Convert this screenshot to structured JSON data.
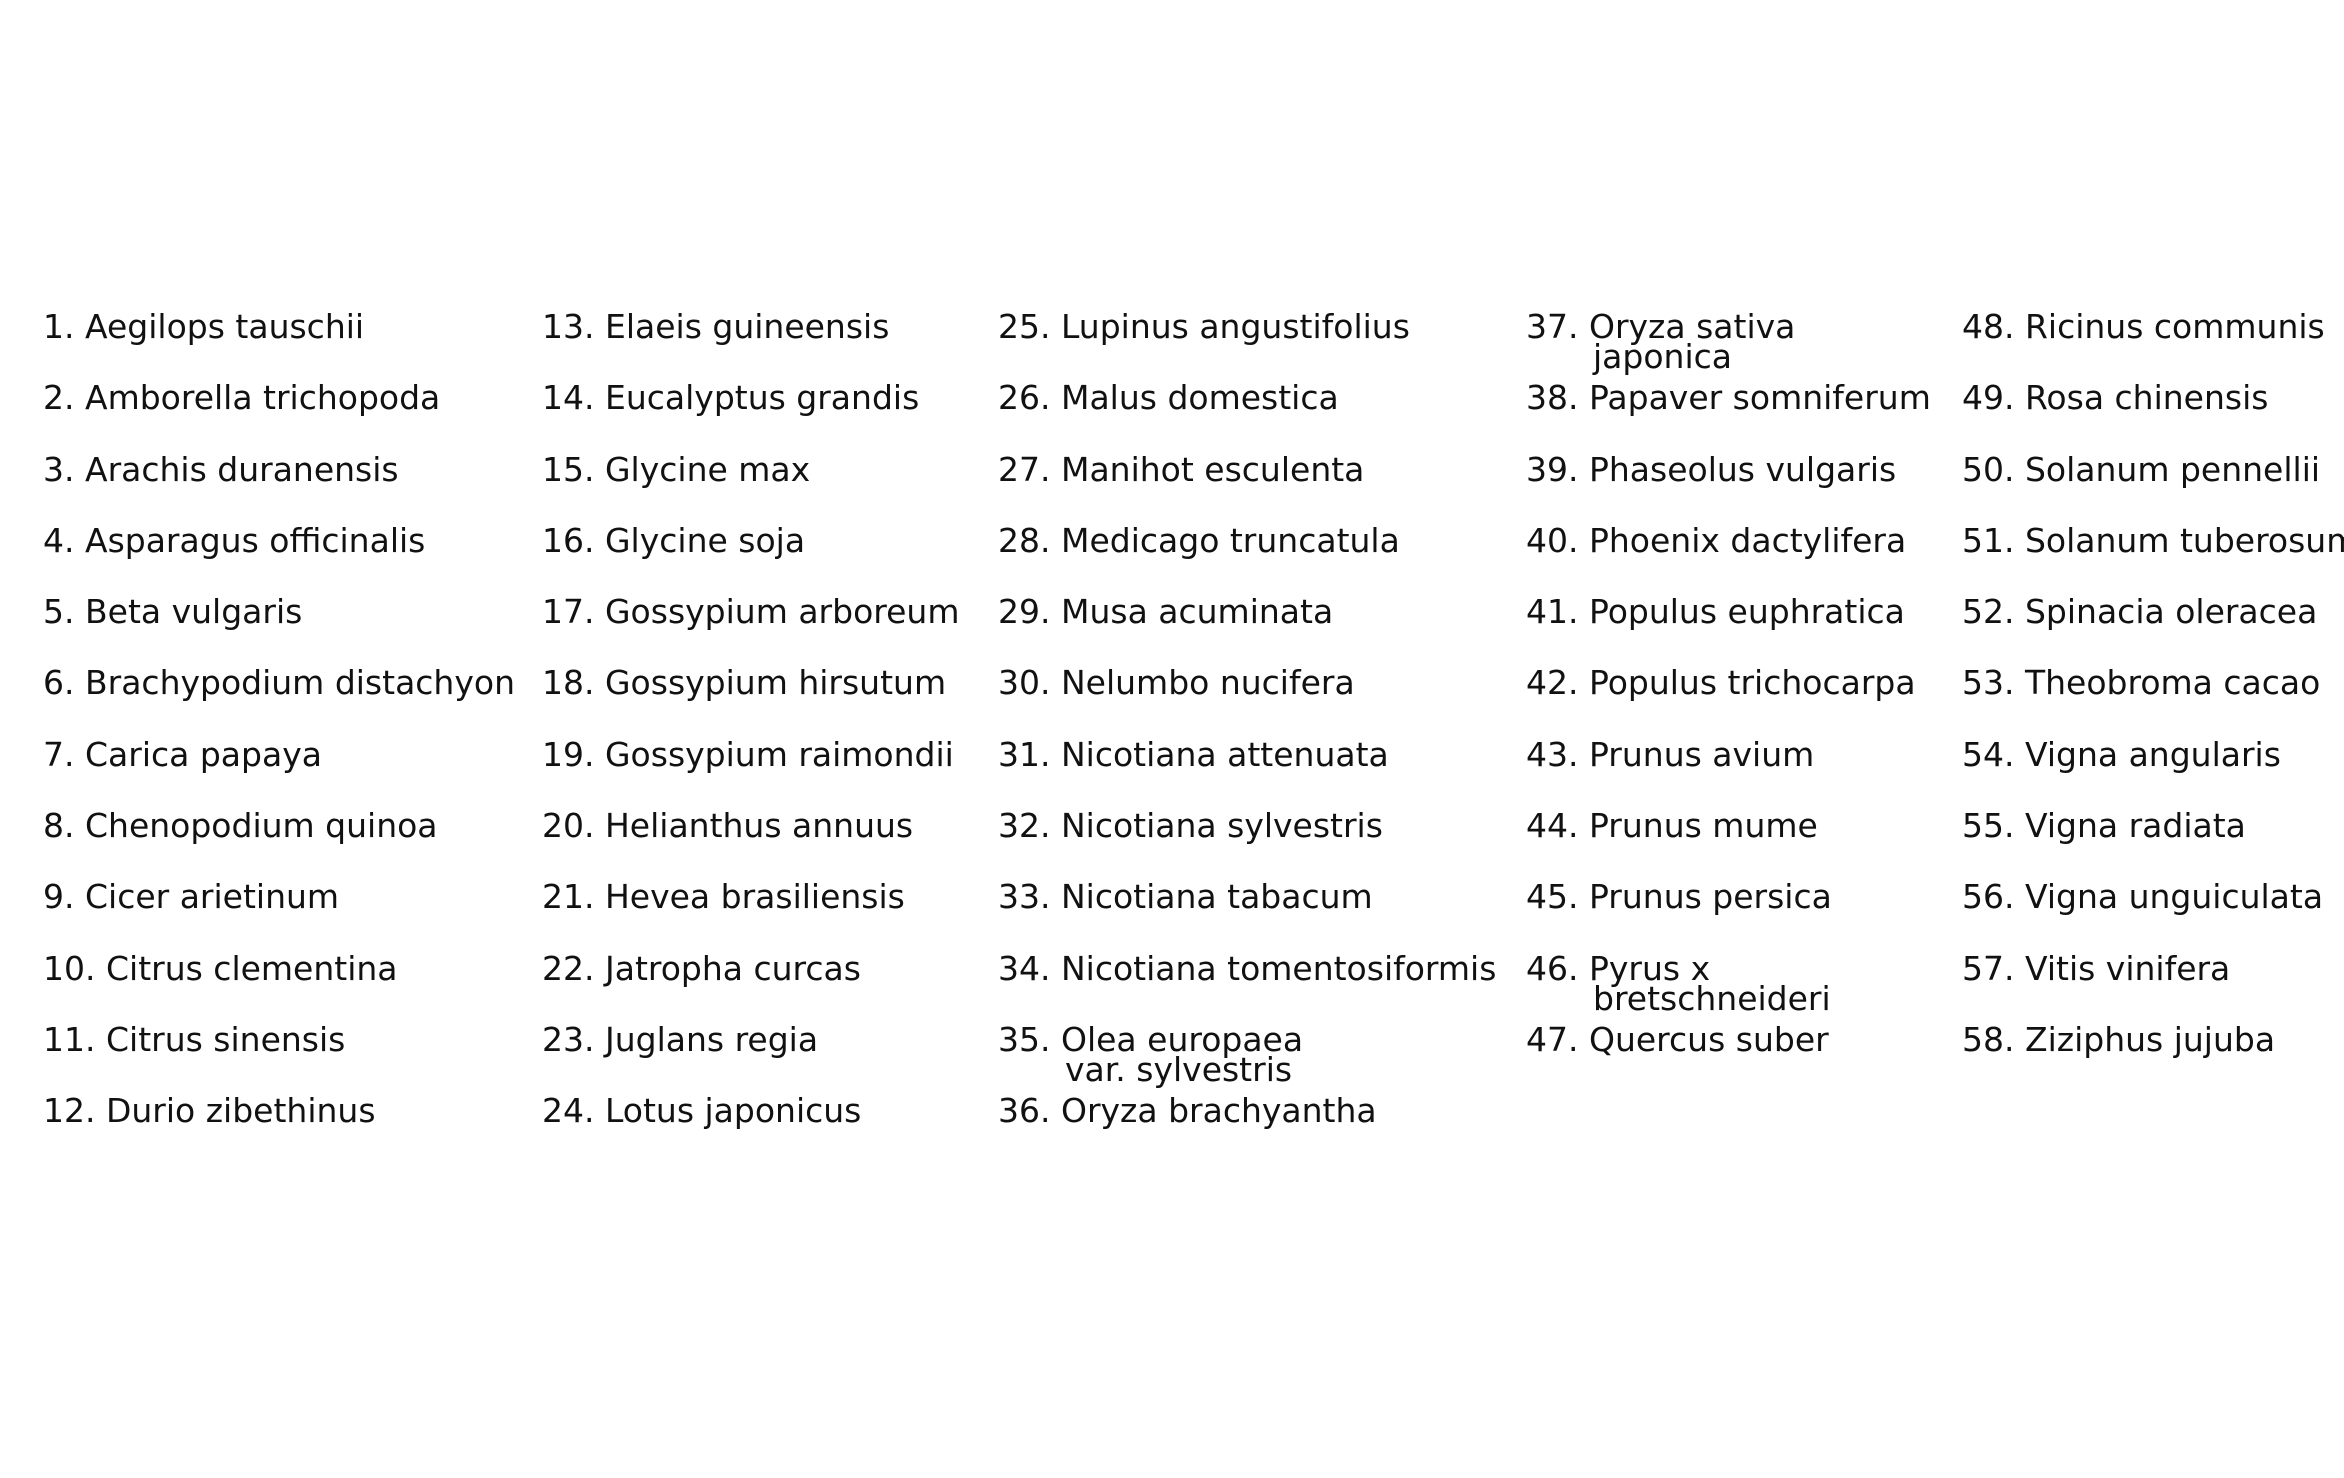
{
  "columns": [
    [
      {
        "num": "1.",
        "name": "Aegilops tauschii"
      },
      {
        "num": "2.",
        "name": "Amborella trichopoda"
      },
      {
        "num": "3.",
        "name": "Arachis duranensis"
      },
      {
        "num": "4.",
        "name": "Asparagus officinalis"
      },
      {
        "num": "5.",
        "name": "Beta vulgaris"
      },
      {
        "num": "6.",
        "name": "Brachypodium distachyon"
      },
      {
        "num": "7.",
        "name": "Carica papaya"
      },
      {
        "num": "8.",
        "name": "Chenopodium quinoa"
      },
      {
        "num": "9.",
        "name": "Cicer arietinum"
      },
      {
        "num": "10.",
        "name": "Citrus clementina"
      },
      {
        "num": "11.",
        "name": "Citrus sinensis"
      },
      {
        "num": "12.",
        "name": "Durio zibethinus"
      }
    ],
    [
      {
        "num": "13.",
        "name": "Elaeis guineensis"
      },
      {
        "num": "14.",
        "name": "Eucalyptus grandis"
      },
      {
        "num": "15.",
        "name": "Glycine max"
      },
      {
        "num": "16.",
        "name": "Glycine soja"
      },
      {
        "num": "17.",
        "name": "Gossypium arboreum"
      },
      {
        "num": "18.",
        "name": "Gossypium hirsutum"
      },
      {
        "num": "19.",
        "name": "Gossypium raimondii"
      },
      {
        "num": "20.",
        "name": "Helianthus annuus"
      },
      {
        "num": "21.",
        "name": "Hevea brasiliensis"
      },
      {
        "num": "22.",
        "name": "Jatropha curcas"
      },
      {
        "num": "23.",
        "name": "Juglans regia"
      },
      {
        "num": "24.",
        "name": "Lotus japonicus"
      }
    ],
    [
      {
        "num": "25.",
        "name": "Lupinus angustifolius"
      },
      {
        "num": "26.",
        "name": "Malus domestica"
      },
      {
        "num": "27.",
        "name": "Manihot esculenta"
      },
      {
        "num": "28.",
        "name": "Medicago truncatula"
      },
      {
        "num": "29.",
        "name": "Musa acuminata"
      },
      {
        "num": "30.",
        "name": "Nelumbo nucifera"
      },
      {
        "num": "31.",
        "name": "Nicotiana attenuata"
      },
      {
        "num": "32.",
        "name": "Nicotiana sylvestris"
      },
      {
        "num": "33.",
        "name": "Nicotiana tabacum"
      },
      {
        "num": "34.",
        "name": "Nicotiana tomentosiformis"
      },
      {
        "num": "35.",
        "name": "Olea europaea",
        "cont": "var. sylvestris"
      },
      {
        "num": "36.",
        "name": "Oryza brachyantha"
      }
    ],
    [
      {
        "num": "37.",
        "name": "Oryza sativa",
        "cont": "japonica"
      },
      {
        "num": "38.",
        "name": "Papaver somniferum"
      },
      {
        "num": "39.",
        "name": "Phaseolus vulgaris"
      },
      {
        "num": "40.",
        "name": "Phoenix dactylifera"
      },
      {
        "num": "41.",
        "name": "Populus euphratica"
      },
      {
        "num": "42.",
        "name": "Populus trichocarpa"
      },
      {
        "num": "43.",
        "name": "Prunus avium"
      },
      {
        "num": "44.",
        "name": "Prunus mume"
      },
      {
        "num": "45.",
        "name": "Prunus persica"
      },
      {
        "num": "46.",
        "name": "Pyrus x",
        "cont": "bretschneideri"
      },
      {
        "num": "47.",
        "name": "Quercus suber"
      }
    ],
    [
      {
        "num": "48.",
        "name": "Ricinus communis"
      },
      {
        "num": "49.",
        "name": "Rosa chinensis"
      },
      {
        "num": "50.",
        "name": "Solanum pennellii"
      },
      {
        "num": "51.",
        "name": "Solanum tuberosum"
      },
      {
        "num": "52.",
        "name": "Spinacia oleracea"
      },
      {
        "num": "53.",
        "name": "Theobroma cacao"
      },
      {
        "num": "54.",
        "name": "Vigna angularis"
      },
      {
        "num": "55.",
        "name": "Vigna radiata"
      },
      {
        "num": "56.",
        "name": "Vigna unguiculata"
      },
      {
        "num": "57.",
        "name": "Vitis vinifera"
      },
      {
        "num": "58.",
        "name": "Ziziphus jujuba"
      }
    ]
  ]
}
